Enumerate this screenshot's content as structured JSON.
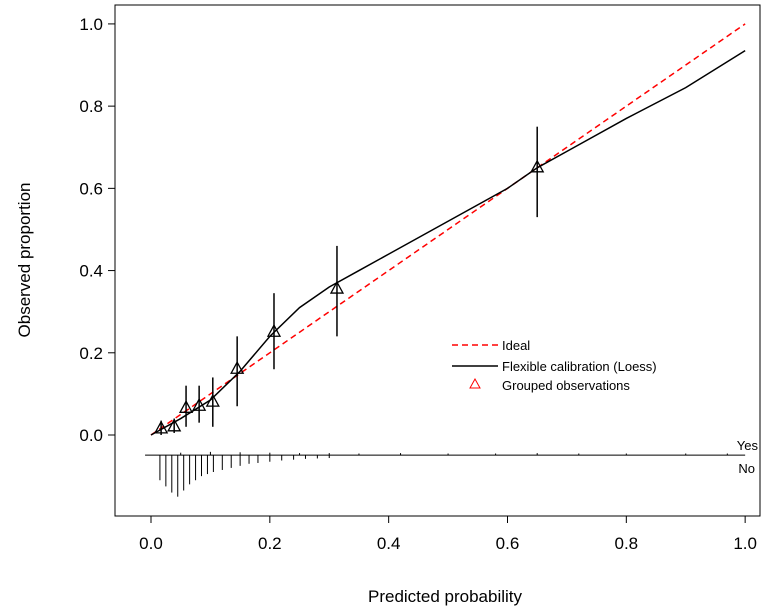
{
  "chart_data": {
    "type": "calibration",
    "xlabel": "Predicted probability",
    "ylabel": "Observed proportion",
    "xlim": [
      -0.0606,
      1.025
    ],
    "ylim": [
      -0.197,
      1.046
    ],
    "xticks": [
      {
        "value": 0,
        "label": "0.0"
      },
      0.2,
      0.4,
      0.6,
      0.8,
      {
        "value": 1,
        "label": "1.0"
      }
    ],
    "yticks": [
      {
        "value": 0,
        "label": "0.0"
      },
      0.2,
      0.4,
      0.6,
      0.8,
      {
        "value": 1,
        "label": "1.0"
      }
    ],
    "series": [
      {
        "name": "Ideal",
        "color": "#ff0000",
        "style": "dashed",
        "x": [
          0,
          1
        ],
        "values": [
          0,
          1
        ]
      },
      {
        "name": "Flexible calibration (Loess)",
        "color": "#000000",
        "style": "solid",
        "x": [
          0,
          0.05,
          0.1,
          0.15,
          0.2,
          0.25,
          0.3,
          0.35,
          0.4,
          0.5,
          0.6,
          0.65,
          0.7,
          0.8,
          0.9,
          1.0
        ],
        "values": [
          0,
          0.04,
          0.085,
          0.155,
          0.24,
          0.31,
          0.36,
          0.4,
          0.44,
          0.52,
          0.6,
          0.65,
          0.69,
          0.77,
          0.845,
          0.935
        ]
      },
      {
        "name": "Grouped observations",
        "color": "#ff0000",
        "style": "triangle",
        "x": [
          0.017,
          0.039,
          0.059,
          0.081,
          0.104,
          0.145,
          0.207,
          0.313,
          0.65
        ],
        "values": [
          0.015,
          0.02,
          0.065,
          0.07,
          0.08,
          0.16,
          0.25,
          0.355,
          0.65
        ],
        "lower": [
          0.0,
          0.005,
          0.02,
          0.03,
          0.02,
          0.07,
          0.16,
          0.24,
          0.53
        ],
        "upper": [
          0.035,
          0.04,
          0.12,
          0.12,
          0.14,
          0.24,
          0.345,
          0.46,
          0.75
        ]
      }
    ],
    "spike_baseline": -0.049,
    "spike_start": -0.01,
    "spike_end": 1.0,
    "spike_yes_label": "Yes",
    "spike_no_label": "No",
    "spikes_yes": {
      "x": [
        0.05,
        0.1,
        0.15,
        0.2,
        0.25,
        0.3,
        0.35,
        0.42,
        0.5,
        0.58,
        0.65,
        0.72,
        0.8,
        0.9,
        0.97
      ],
      "values": [
        -0.043,
        -0.041,
        -0.042,
        -0.043,
        -0.044,
        -0.044,
        -0.045,
        -0.044,
        -0.045,
        -0.045,
        -0.044,
        -0.045,
        -0.045,
        -0.045,
        -0.045
      ]
    },
    "spikes_no": {
      "x": [
        0.015,
        0.025,
        0.035,
        0.045,
        0.055,
        0.065,
        0.075,
        0.085,
        0.095,
        0.105,
        0.12,
        0.135,
        0.15,
        0.165,
        0.18,
        0.2,
        0.22,
        0.24,
        0.26,
        0.28,
        0.3
      ],
      "values": [
        -0.11,
        -0.125,
        -0.14,
        -0.15,
        -0.135,
        -0.12,
        -0.11,
        -0.1,
        -0.095,
        -0.09,
        -0.085,
        -0.08,
        -0.075,
        -0.07,
        -0.068,
        -0.065,
        -0.062,
        -0.06,
        -0.058,
        -0.057,
        -0.056
      ]
    }
  }
}
